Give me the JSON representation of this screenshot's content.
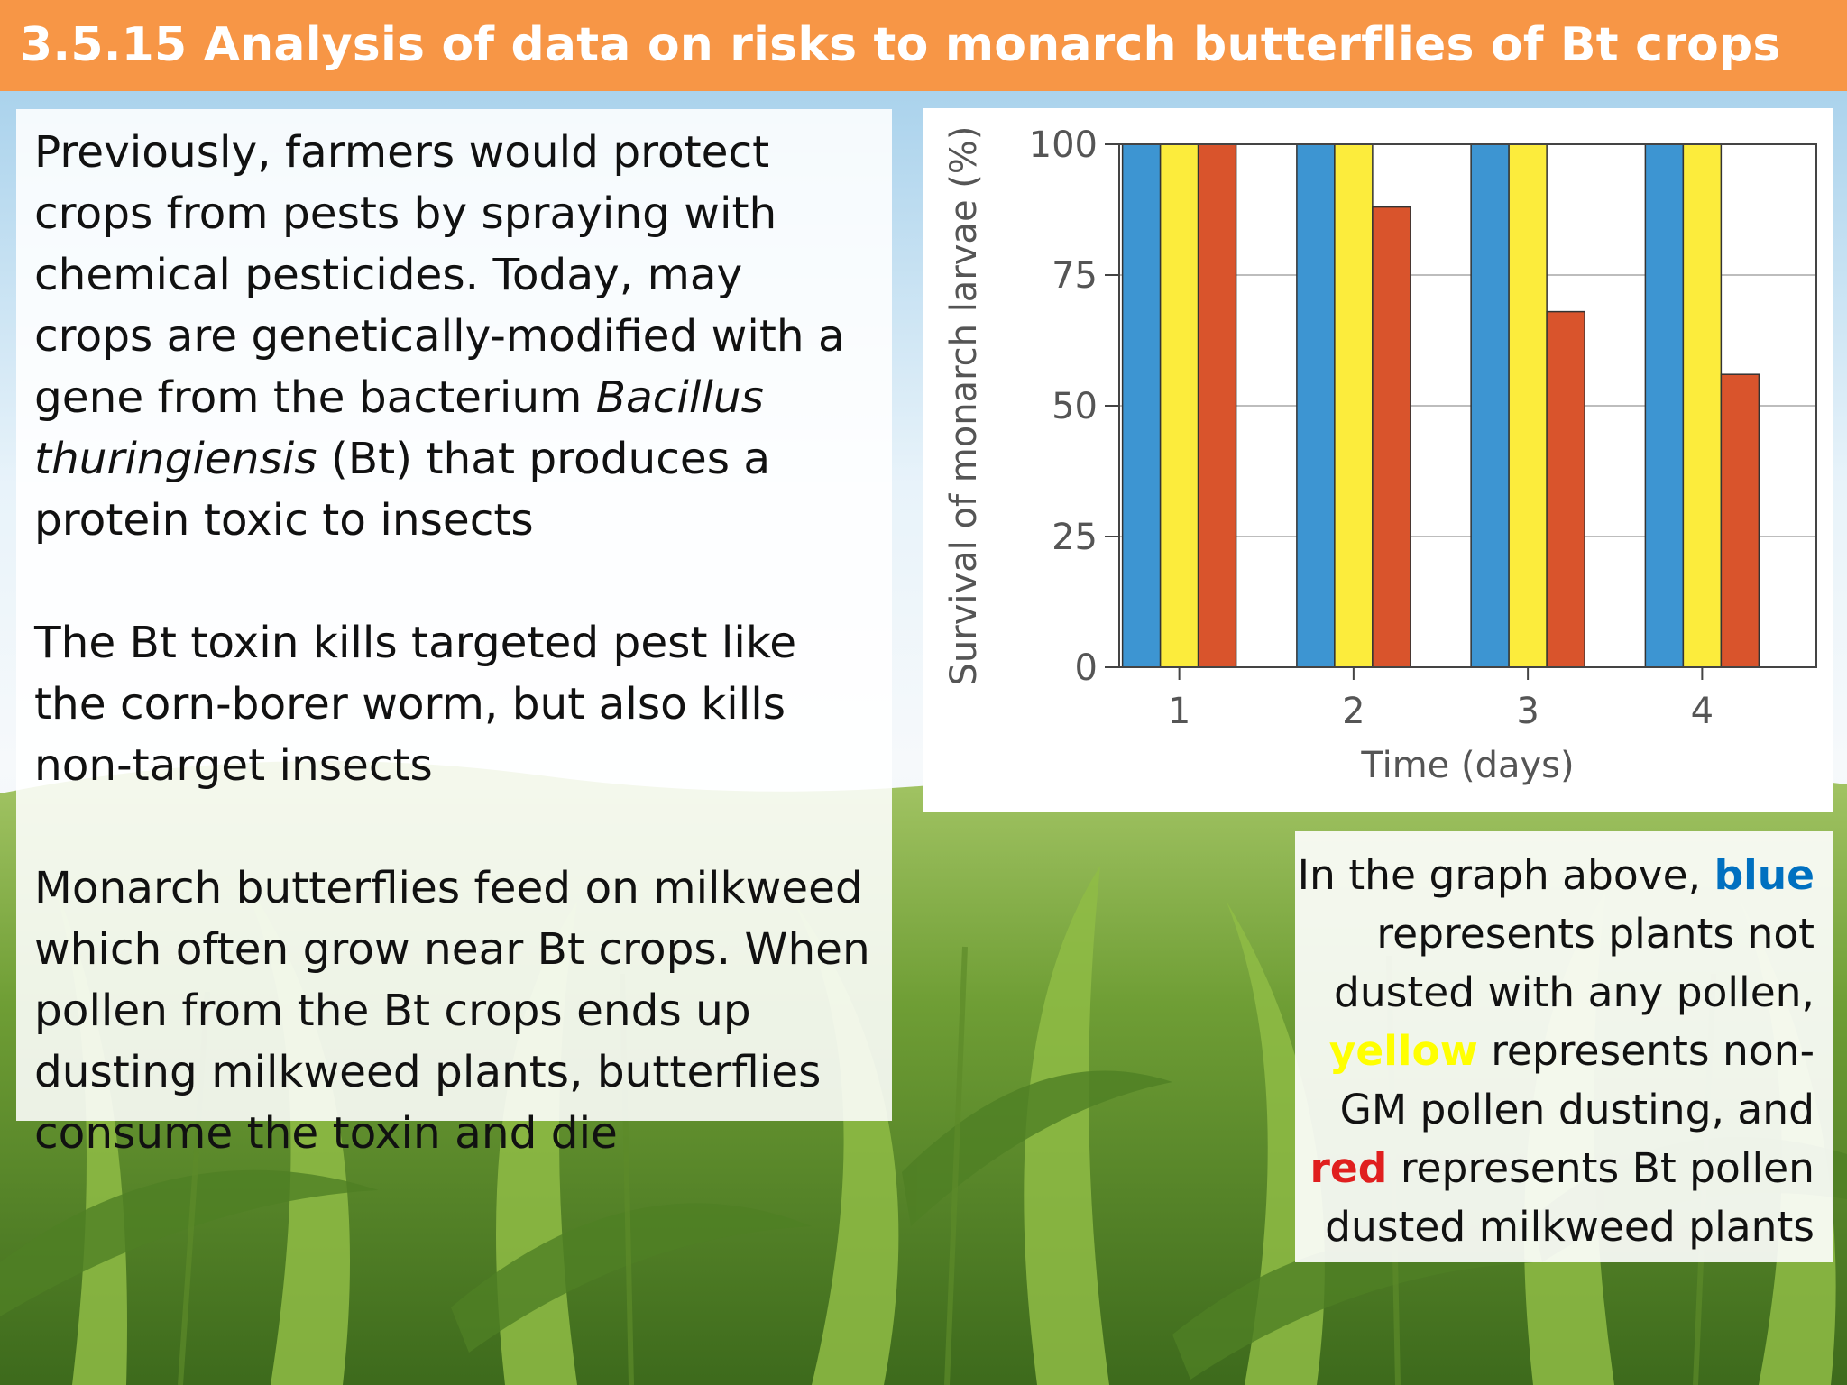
{
  "slide_title": "3.5.15 Analysis of data on risks to monarch butterflies of Bt crops",
  "text": {
    "para1": {
      "before": "Previously, farmers would protect crops from pests by spraying with chemical pesticides. Today, may crops are genetically-modified with a gene from the bacterium ",
      "italic": "Bacillus thuringiensis",
      "after": " (Bt) that produces a protein toxic to insects"
    },
    "para2": "The Bt toxin kills targeted pest like the corn-borer worm, but also kills non-target insects",
    "para3": "Monarch butterflies feed on milkweed which often grow near Bt crops. When pollen from the Bt crops ends up dusting milkweed plants, butterflies consume the toxin and die"
  },
  "legend_text": {
    "t1": "In the graph above, ",
    "blue": "blue",
    "t2": " represents plants not dusted with any pollen, ",
    "yellow": "yellow",
    "t3": " represents non-GM pollen dusting, and ",
    "red": "red",
    "t4": " represents Bt pollen dusted milkweed plants"
  },
  "colors": {
    "title_bar": "#f79646",
    "blue": "#3d95d2",
    "yellow": "#fcec3c",
    "red": "#d9542c"
  },
  "chart_data": {
    "type": "bar",
    "categories": [
      "1",
      "2",
      "3",
      "4"
    ],
    "series": [
      {
        "color": "#3d95d2",
        "values": [
          100,
          100,
          100,
          100
        ]
      },
      {
        "color": "#fcec3c",
        "values": [
          100,
          100,
          100,
          100
        ]
      },
      {
        "color": "#d9542c",
        "values": [
          100,
          88,
          68,
          56
        ]
      }
    ],
    "xlabel": "Time (days)",
    "ylabel": "Survival of monarch larvae (%)",
    "ylim": [
      0,
      100
    ],
    "yticks": [
      0,
      25,
      50,
      75,
      100
    ],
    "grid": true
  }
}
